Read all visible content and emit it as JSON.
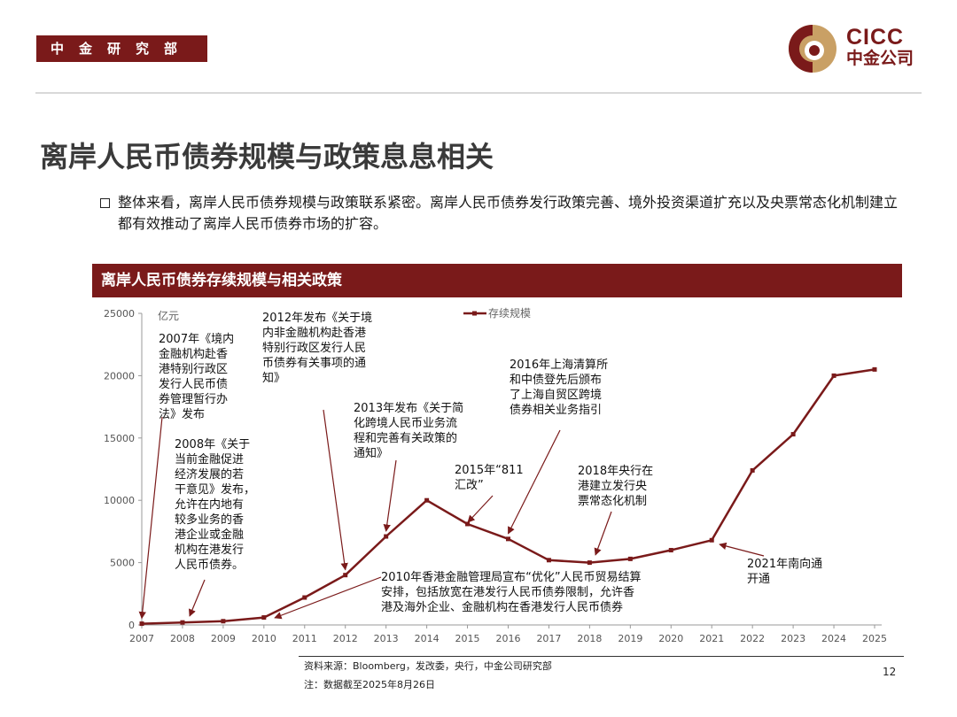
{
  "header": {
    "department": "中金研究部",
    "logo_en": "CICC",
    "logo_cn": "中金公司"
  },
  "title": "离岸人民币债券规模与政策息息相关",
  "bullet": "整体来看，离岸人民币债券规模与政策联系紧密。离岸人民币债券发行政策完善、境外投资渠道扩充以及央票常态化机制建立都有效推动了离岸人民币债券市场的扩容。",
  "chart_banner": "离岸人民币债券存续规模与相关政策",
  "chart_data": {
    "type": "line",
    "x": [
      2007,
      2008,
      2009,
      2010,
      2011,
      2012,
      2013,
      2014,
      2015,
      2016,
      2017,
      2018,
      2019,
      2020,
      2021,
      2022,
      2023,
      2024,
      2025
    ],
    "series": [
      {
        "name": "存续规模",
        "values": [
          100,
          200,
          300,
          600,
          2200,
          4000,
          7100,
          10000,
          8100,
          6900,
          5200,
          5000,
          5300,
          6000,
          6800,
          12400,
          15300,
          20000,
          20500
        ]
      }
    ],
    "ylabel": "亿元",
    "ylim": [
      0,
      25000
    ],
    "yticks": [
      0,
      5000,
      10000,
      15000,
      20000,
      25000
    ],
    "xticks": [
      "2007",
      "2008",
      "2009",
      "2010",
      "2011",
      "2012",
      "2013",
      "2014",
      "2015",
      "2016",
      "2017",
      "2018",
      "2019",
      "2020",
      "2021",
      "2022",
      "2023",
      "2024",
      "2025"
    ],
    "line_color": "#7a1a1a",
    "legend_position": "top-center",
    "grid": false,
    "annotations": [
      {
        "text": "2007年《境内\n金融机构赴香\n港特别行政区\n发行人民币债\n券管理暂行办\n法》发布",
        "x": 2007,
        "y": 100
      },
      {
        "text": "2008年《关于\n当前金融促进\n经济发展的若\n干意见》发布，\n允许在内地有\n较多业务的香\n港企业或金融\n机构在港发行\n人民币债券。",
        "x": 2008,
        "y": 200
      },
      {
        "text": "2012年发布《关于境\n内非金融机构赴香港\n特别行政区发行人民\n币债券有关事项的通\n知》",
        "x": 2012,
        "y": 4000
      },
      {
        "text": "2013年发布《关于简\n化跨境人民币业务流\n程和完善有关政策的\n通知》",
        "x": 2013,
        "y": 7100
      },
      {
        "text": "2015年“811\n汇改”",
        "x": 2015,
        "y": 8100
      },
      {
        "text": "2016年上海清算所\n和中债登先后颁布\n了上海自贸区跨境\n债券相关业务指引",
        "x": 2016,
        "y": 6900
      },
      {
        "text": "2018年央行在\n港建立发行央\n票常态化机制",
        "x": 2018,
        "y": 5000
      },
      {
        "text": "2010年香港金融管理局宣布“优化”人民币贸易结算\n安排，包括放宽在港发行人民币债券限制，允许香\n港及海外企业、金融机构在香港发行人民币债券",
        "x": 2010,
        "y": 600
      },
      {
        "text": "2021年南向通\n开通",
        "x": 2021,
        "y": 6800
      }
    ]
  },
  "footer": {
    "source": "资料来源：Bloomberg，发改委，央行，中金公司研究部",
    "note": "注：数据截至2025年8月26日",
    "page": "12"
  }
}
